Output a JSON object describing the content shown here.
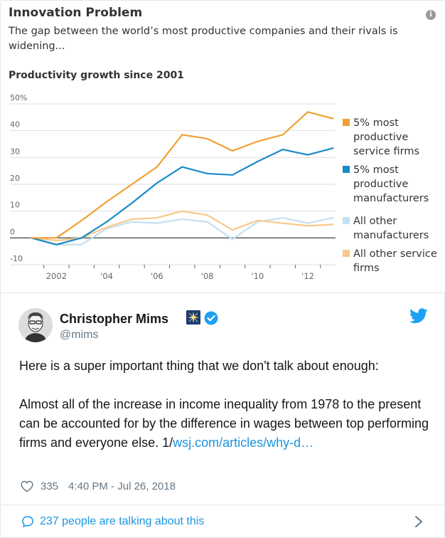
{
  "chart_header": {
    "title": "Innovation Problem",
    "subtitle": "The gap between the world’s most productive companies and their rivals is widening...",
    "heading": "Productivity growth since 2001",
    "info_icon": "info-icon"
  },
  "chart_data": {
    "type": "line",
    "title": "Productivity growth since 2001",
    "x": [
      2001,
      2002,
      2003,
      2004,
      2005,
      2006,
      2007,
      2008,
      2009,
      2010,
      2011,
      2012,
      2013
    ],
    "x_tick_labels": [
      {
        "x": 2002,
        "label": "2002"
      },
      {
        "x": 2004,
        "label": "'04"
      },
      {
        "x": 2006,
        "label": "'06"
      },
      {
        "x": 2008,
        "label": "'08"
      },
      {
        "x": 2010,
        "label": "'10"
      },
      {
        "x": 2012,
        "label": "'12"
      }
    ],
    "y_ticks": [
      {
        "y": 50,
        "label": "50%"
      },
      {
        "y": 40,
        "label": "40"
      },
      {
        "y": 30,
        "label": "30"
      },
      {
        "y": 20,
        "label": "20"
      },
      {
        "y": 10,
        "label": "10"
      },
      {
        "y": 0,
        "label": "0"
      },
      {
        "y": -10,
        "label": "-10"
      }
    ],
    "xlim": [
      2001,
      2013.1
    ],
    "ylim": [
      -10,
      50
    ],
    "grid": true,
    "legend_position": "right",
    "series": [
      {
        "name": "5% most productive service firms",
        "legend_lines": [
          "5% most",
          "productive",
          "service firms"
        ],
        "color": "#f0a030",
        "values": [
          0,
          0,
          6.5,
          13.5,
          20,
          26.5,
          38.5,
          37,
          32.5,
          36,
          38.5,
          47,
          44.5
        ]
      },
      {
        "name": "5% most productive manufacturers",
        "legend_lines": [
          "5% most",
          "productive",
          "manufacturers"
        ],
        "color": "#1a8ac8",
        "values": [
          0,
          -2.5,
          0,
          6,
          13,
          20.5,
          26.5,
          24,
          23.5,
          28.5,
          33,
          31,
          33.5
        ]
      },
      {
        "name": "All other manufacturers",
        "legend_lines": [
          "All other",
          "manufacturers"
        ],
        "color": "#c5dff2",
        "values": [
          0,
          -2.5,
          -2.5,
          3.5,
          6,
          5.5,
          7,
          6,
          -0.5,
          6,
          7.5,
          5.5,
          7.5
        ]
      },
      {
        "name": "All other service firms",
        "legend_lines": [
          "All other service",
          "firms"
        ],
        "color": "#f8c98a",
        "values": [
          0,
          -1,
          0,
          4,
          7,
          7.5,
          10,
          8.5,
          3,
          6.5,
          5.5,
          4.5,
          5
        ]
      }
    ]
  },
  "tweet": {
    "display_name": "Christopher Mims",
    "handle": "@mims",
    "paragraph1": "Here is a super important thing that we don't talk about enough:",
    "paragraph2": "Almost all of the increase in income inequality from 1978 to the present can be accounted for by the difference in wages between top performing firms and everyone else.",
    "paragraph2_prefix": "1/",
    "link_text": "wsj.com/articles/why-d…",
    "likes": "335",
    "timestamp": "4:40 PM - Jul 26, 2018"
  },
  "footer": {
    "talking": "237 people are talking about this"
  },
  "colors": {
    "link": "#1b95e0",
    "muted": "#657786",
    "verified": "#1da1f2"
  }
}
